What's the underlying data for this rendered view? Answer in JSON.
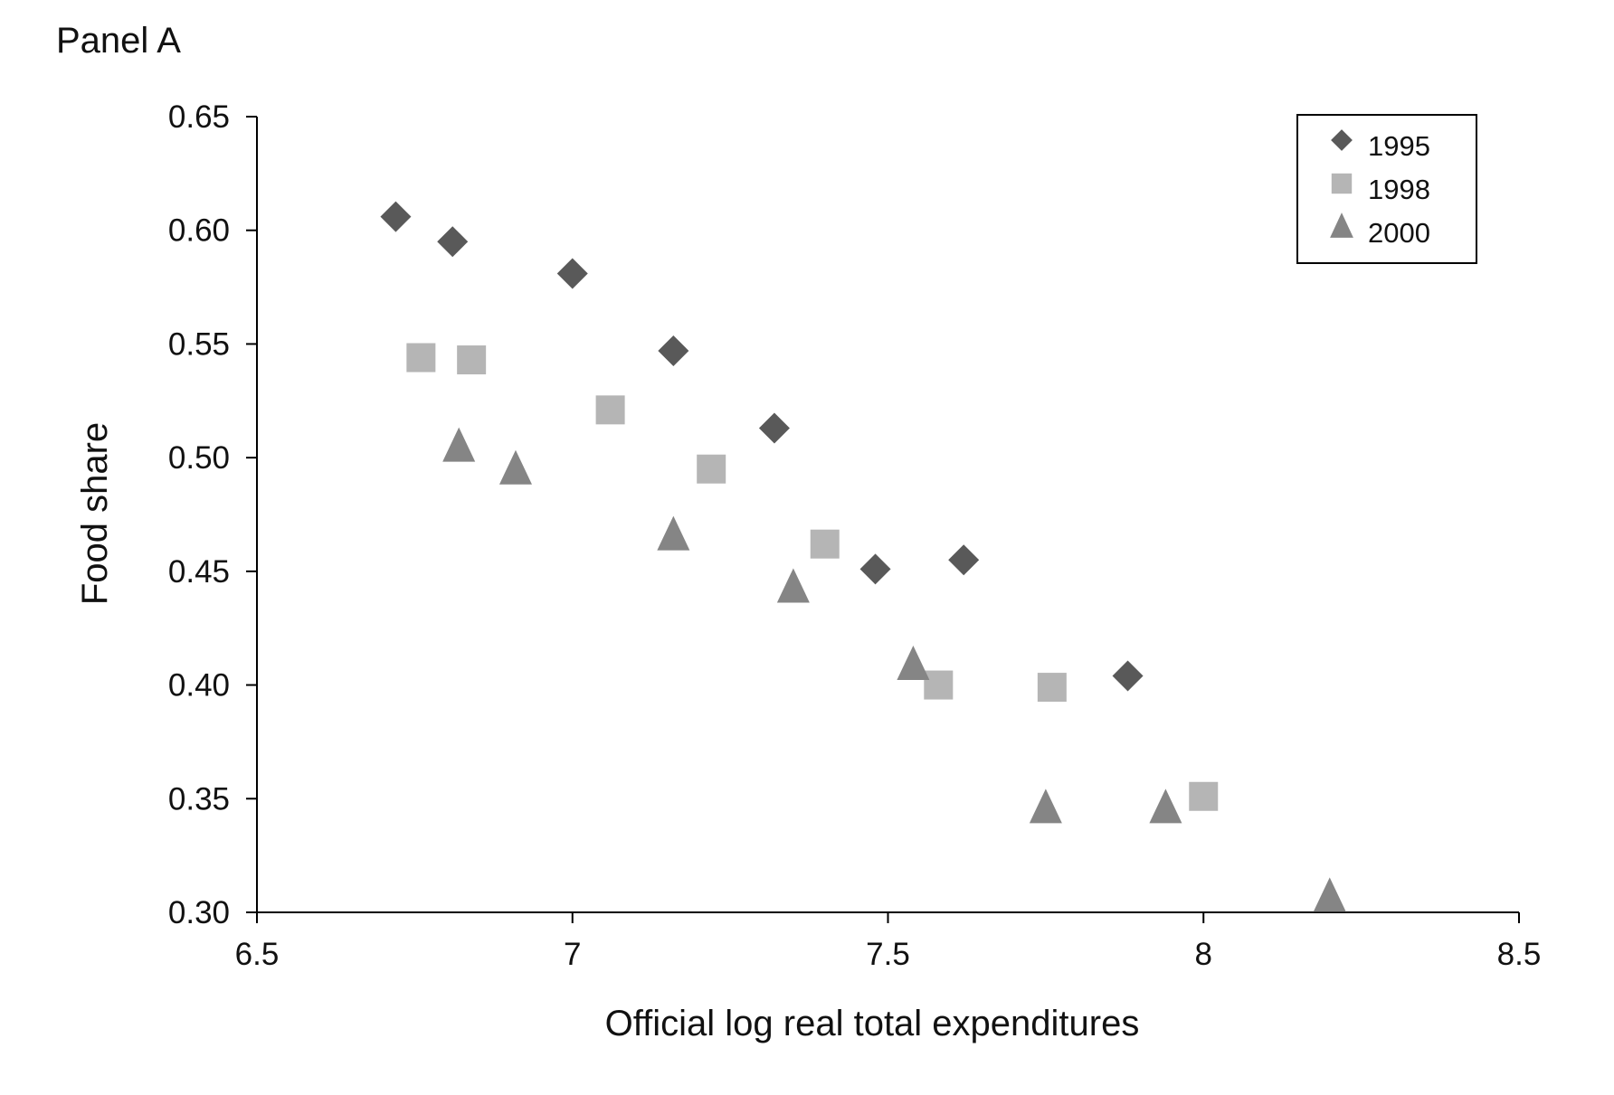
{
  "panel_label": "Panel A",
  "colors": {
    "1995": "#595959",
    "1998": "#b5b5b5",
    "2000": "#858585",
    "axis": "#000000"
  },
  "chart_data": {
    "type": "scatter",
    "xlabel": "Official log real total expenditures",
    "ylabel": "Food share",
    "xlim": [
      6.5,
      8.5
    ],
    "ylim": [
      0.3,
      0.65
    ],
    "x_ticks": [
      "6.5",
      "7",
      "7.5",
      "8",
      "8.5"
    ],
    "y_ticks": [
      "0.30",
      "0.35",
      "0.40",
      "0.45",
      "0.50",
      "0.55",
      "0.60",
      "0.65"
    ],
    "legend_position": "top-right",
    "grid": false,
    "series": [
      {
        "name": "1995",
        "marker": "diamond",
        "points": [
          {
            "x": 6.72,
            "y": 0.606
          },
          {
            "x": 6.81,
            "y": 0.595
          },
          {
            "x": 7.0,
            "y": 0.581
          },
          {
            "x": 7.16,
            "y": 0.547
          },
          {
            "x": 7.32,
            "y": 0.513
          },
          {
            "x": 7.48,
            "y": 0.451
          },
          {
            "x": 7.62,
            "y": 0.455
          },
          {
            "x": 7.88,
            "y": 0.404
          }
        ]
      },
      {
        "name": "1998",
        "marker": "square",
        "points": [
          {
            "x": 6.76,
            "y": 0.544
          },
          {
            "x": 6.84,
            "y": 0.543
          },
          {
            "x": 7.06,
            "y": 0.521
          },
          {
            "x": 7.22,
            "y": 0.495
          },
          {
            "x": 7.4,
            "y": 0.462
          },
          {
            "x": 7.58,
            "y": 0.4
          },
          {
            "x": 7.76,
            "y": 0.399
          },
          {
            "x": 8.0,
            "y": 0.351
          }
        ]
      },
      {
        "name": "2000",
        "marker": "triangle",
        "points": [
          {
            "x": 6.82,
            "y": 0.505
          },
          {
            "x": 6.91,
            "y": 0.495
          },
          {
            "x": 7.16,
            "y": 0.466
          },
          {
            "x": 7.35,
            "y": 0.443
          },
          {
            "x": 7.54,
            "y": 0.409
          },
          {
            "x": 7.75,
            "y": 0.346
          },
          {
            "x": 7.94,
            "y": 0.346
          },
          {
            "x": 8.2,
            "y": 0.307
          }
        ]
      }
    ]
  }
}
